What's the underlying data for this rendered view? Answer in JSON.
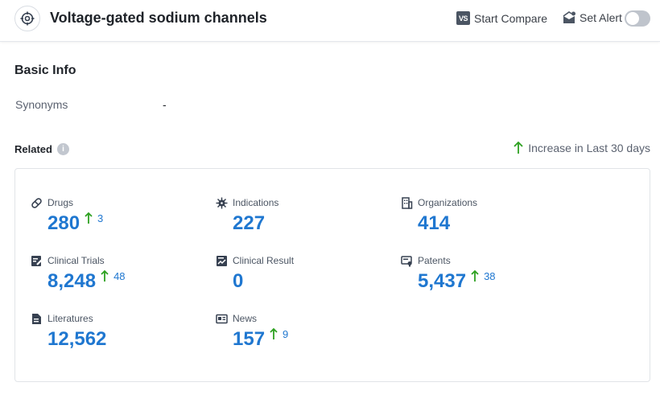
{
  "header": {
    "title": "Voltage-gated sodium channels",
    "compare_label": "Start Compare",
    "compare_icon_text": "VS",
    "alert_label": "Set Alert",
    "alert_enabled": false
  },
  "basic_info": {
    "title": "Basic Info",
    "synonyms_label": "Synonyms",
    "synonyms_value": "-"
  },
  "related": {
    "title": "Related",
    "legend_label": "Increase in Last 30 days",
    "colors": {
      "value": "#1f77d0",
      "increase_arrow": "#2ea121"
    },
    "items": [
      {
        "icon": "pill-icon",
        "label": "Drugs",
        "value": "280",
        "increase": "3"
      },
      {
        "icon": "virus-icon",
        "label": "Indications",
        "value": "227",
        "increase": ""
      },
      {
        "icon": "building-icon",
        "label": "Organizations",
        "value": "414",
        "increase": ""
      },
      {
        "icon": "clinical-trial-icon",
        "label": "Clinical Trials",
        "value": "8,248",
        "increase": "48"
      },
      {
        "icon": "chart-document-icon",
        "label": "Clinical Result",
        "value": "0",
        "increase": ""
      },
      {
        "icon": "patent-icon",
        "label": "Patents",
        "value": "5,437",
        "increase": "38"
      },
      {
        "icon": "document-icon",
        "label": "Literatures",
        "value": "12,562",
        "increase": ""
      },
      {
        "icon": "newspaper-icon",
        "label": "News",
        "value": "157",
        "increase": "9"
      }
    ]
  }
}
